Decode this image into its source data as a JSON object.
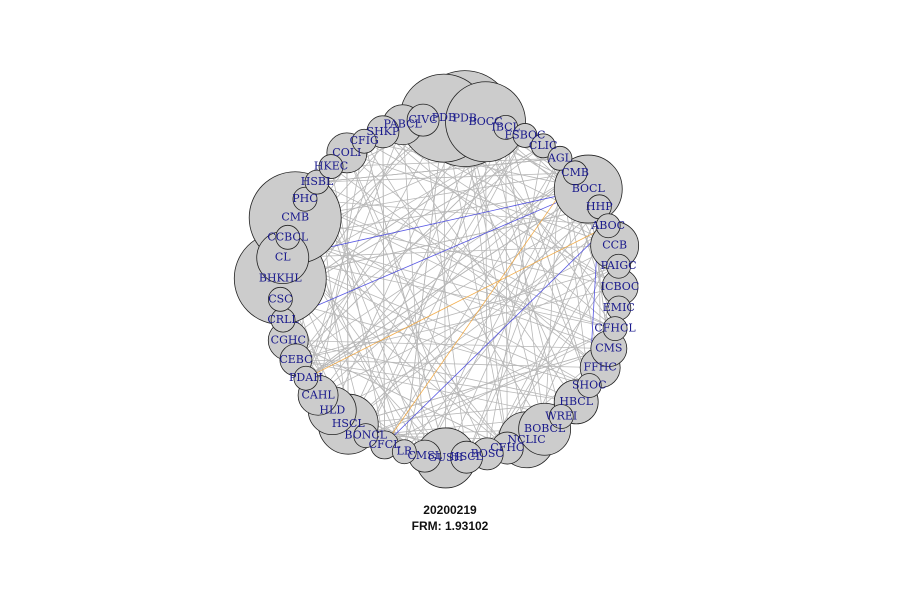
{
  "caption": {
    "date": "20200219",
    "frm": "FRM: 1.93102"
  },
  "colors": {
    "edge": "#b8b8b8",
    "edge_highlight_blue": "#3a3adf",
    "edge_highlight_orange": "#f0a030",
    "node_fill": "#cccccc",
    "label": "#1a1a8c"
  },
  "nodes": [
    {
      "label": "PDB",
      "size": 1.0
    },
    {
      "label": "BOCC",
      "size": 0.8
    },
    {
      "label": "IBCL",
      "size": 0.1
    },
    {
      "label": "FSBOC",
      "size": 0.1
    },
    {
      "label": "CLIC",
      "size": 0.1
    },
    {
      "label": "AGL",
      "size": 0.1
    },
    {
      "label": "CMB",
      "size": 0.1
    },
    {
      "label": "BOCL",
      "size": 0.65
    },
    {
      "label": "HHP",
      "size": 0.1
    },
    {
      "label": "ABOC",
      "size": 0.1
    },
    {
      "label": "CCB",
      "size": 0.4
    },
    {
      "label": "PAIGC",
      "size": 0.1
    },
    {
      "label": "ICBOC",
      "size": 0.25
    },
    {
      "label": "EMIC",
      "size": 0.1
    },
    {
      "label": "CFHCL",
      "size": 0.1
    },
    {
      "label": "CMS",
      "size": 0.25
    },
    {
      "label": "FFHC",
      "size": 0.3
    },
    {
      "label": "SHOC",
      "size": 0.1
    },
    {
      "label": "HBCL",
      "size": 0.35
    },
    {
      "label": "WREI",
      "size": 0.1
    },
    {
      "label": "BOBCL",
      "size": 0.45
    },
    {
      "label": "NCLIC",
      "size": 0.5
    },
    {
      "label": "CFHC",
      "size": 0.2
    },
    {
      "label": "BOSC",
      "size": 0.2
    },
    {
      "label": "HSCL",
      "size": 0.2
    },
    {
      "label": "GUSH",
      "size": 0.55
    },
    {
      "label": "CMSL",
      "size": 0.2
    },
    {
      "label": "LR",
      "size": 0.1
    },
    {
      "label": "CFCL",
      "size": 0.15
    },
    {
      "label": "BONCL",
      "size": 0.1
    },
    {
      "label": "HSCL",
      "size": 0.55
    },
    {
      "label": "HLD",
      "size": 0.4
    },
    {
      "label": "CAHL",
      "size": 0.3
    },
    {
      "label": "PDAH",
      "size": 0.1
    },
    {
      "label": "CEBC",
      "size": 0.2
    },
    {
      "label": "CGHC",
      "size": 0.3
    },
    {
      "label": "CRLL",
      "size": 0.1
    },
    {
      "label": "CSC",
      "size": 0.1
    },
    {
      "label": "BHKHL",
      "size": 0.95
    },
    {
      "label": "CL",
      "size": 0.45
    },
    {
      "label": "CCBCL",
      "size": 0.1
    },
    {
      "label": "CMB",
      "size": 0.95
    },
    {
      "label": "PHC",
      "size": 0.1
    },
    {
      "label": "HSBL",
      "size": 0.1
    },
    {
      "label": "HKEC",
      "size": 0.1
    },
    {
      "label": "COLI",
      "size": 0.3
    },
    {
      "label": "CFIG",
      "size": 0.1
    },
    {
      "label": "SHKP",
      "size": 0.2
    },
    {
      "label": "PABCL",
      "size": 0.3
    },
    {
      "label": "CIVC",
      "size": 0.2
    },
    {
      "label": "PDB",
      "size": 0.9
    }
  ],
  "highlighted_edges": [
    {
      "from": "BOCL",
      "to": "CL",
      "color": "blue"
    },
    {
      "from": "BOCL",
      "to": "CRLL",
      "color": "blue"
    },
    {
      "from": "ABOC",
      "to": "CFCL",
      "color": "blue"
    },
    {
      "from": "HHP",
      "to": "SHOC",
      "color": "blue"
    },
    {
      "from": "ABOC",
      "to": "PDAH",
      "color": "orange"
    },
    {
      "from": "CMB",
      "to": "CFCL",
      "color": "orange"
    },
    {
      "from": "AGL",
      "to": "IBCL",
      "color": "orange"
    }
  ]
}
